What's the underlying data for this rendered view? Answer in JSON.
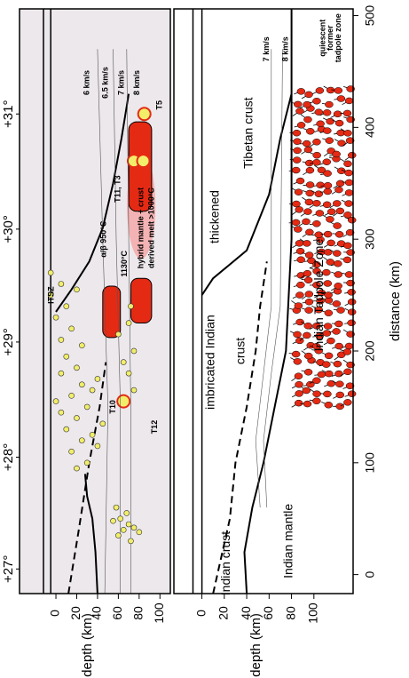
{
  "chart_data": [
    {
      "type": "line",
      "ylabel": "depth (km)",
      "xlim": [
        -17,
        506
      ],
      "ylim": [
        -35,
        110
      ],
      "yticks": [
        0,
        20,
        40,
        60,
        80,
        100
      ],
      "x2ticks": [
        {
          "value": 5,
          "label": "+27°"
        },
        {
          "value": 105,
          "label": "+28°"
        },
        {
          "value": 208,
          "label": "+29°"
        },
        {
          "value": 309,
          "label": "+30°"
        },
        {
          "value": 412,
          "label": "+31°"
        }
      ],
      "background": "#ece8ec",
      "series": [
        {
          "color": "#000000",
          "style": "solid",
          "width": 1.5,
          "x": [
            -17,
            506
          ],
          "values": [
            -12,
            -12
          ]
        },
        {
          "color": "#000000",
          "style": "solid",
          "width": 1.5,
          "x": [
            -17,
            506
          ],
          "values": [
            -5,
            -5
          ]
        },
        {
          "color": "#000000",
          "style": "dashed",
          "width": 2,
          "x": [
            -17,
            40,
            100,
            150,
            190
          ],
          "values": [
            12,
            22,
            32,
            42,
            48
          ]
        },
        {
          "color": "#000000",
          "style": "solid",
          "width": 2,
          "x": [
            -17,
            20,
            50,
            70,
            90
          ],
          "values": [
            40,
            38,
            35,
            30,
            28
          ]
        },
        {
          "color": "#000000",
          "style": "solid",
          "width": 2,
          "x": [
            235,
            255,
            280,
            310,
            350,
            390,
            430
          ],
          "values": [
            0,
            15,
            32,
            45,
            55,
            63,
            70
          ]
        },
        {
          "color": "#555555",
          "style": "solid",
          "width": 0.6,
          "x": [
            -17,
            150,
            300,
            470
          ],
          "values": [
            47,
            50,
            45,
            40
          ]
        },
        {
          "color": "#555555",
          "style": "solid",
          "width": 0.6,
          "x": [
            -17,
            150,
            300,
            470
          ],
          "values": [
            62,
            62,
            58,
            55
          ]
        },
        {
          "color": "#555555",
          "style": "solid",
          "width": 0.6,
          "x": [
            -17,
            150,
            300,
            470
          ],
          "values": [
            72,
            72,
            70,
            68
          ]
        }
      ],
      "scatter": {
        "color": "#f2ee6a",
        "x": [
          35,
          40,
          45,
          42,
          50,
          55,
          30,
          60,
          38,
          48,
          95,
          100,
          110,
          120,
          130,
          140,
          150,
          160,
          170,
          180,
          115,
          125,
          135,
          145,
          155,
          165,
          175,
          185,
          195,
          205,
          210,
          220,
          230,
          240,
          250,
          255,
          215,
          225,
          200,
          190,
          180,
          165,
          240,
          260,
          270
        ],
        "values": [
          60,
          65,
          70,
          75,
          62,
          68,
          72,
          58,
          80,
          55,
          20,
          30,
          15,
          25,
          10,
          20,
          30,
          15,
          25,
          5,
          40,
          35,
          45,
          5,
          0,
          35,
          40,
          20,
          10,
          25,
          5,
          15,
          0,
          10,
          -5,
          20,
          60,
          70,
          75,
          65,
          70,
          75,
          72,
          5,
          -5
        ]
      },
      "annotations": [
        "6 km/s",
        "6.5 km/s",
        "7 km/s",
        "8 km/s",
        "T5",
        "T11, T3",
        "hybrid mantle + crust",
        "derived melt >1000°C",
        "α/β 950°C",
        "1130°C",
        "ITSZ",
        "T10",
        "T12"
      ]
    },
    {
      "type": "line",
      "xlabel": "distance (km)",
      "ylabel": "depth (km)",
      "xlim": [
        -17,
        506
      ],
      "ylim": [
        -25,
        135
      ],
      "yticks": [
        0,
        20,
        40,
        60,
        80,
        100
      ],
      "xticks": [
        0,
        100,
        200,
        300,
        400,
        500
      ],
      "background": "#ffffff",
      "series": [
        {
          "color": "#000000",
          "style": "solid",
          "width": 1.5,
          "x": [
            -17,
            506
          ],
          "values": [
            -8,
            -8
          ]
        },
        {
          "color": "#000000",
          "style": "solid",
          "width": 1.5,
          "x": [
            -17,
            506
          ],
          "values": [
            0,
            0
          ]
        },
        {
          "color": "#000000",
          "style": "dashed",
          "width": 2,
          "x": [
            -17,
            50,
            100,
            150,
            200,
            240,
            280
          ],
          "values": [
            10,
            25,
            30,
            40,
            48,
            52,
            58
          ]
        },
        {
          "color": "#000000",
          "style": "solid",
          "width": 2,
          "x": [
            -17,
            20,
            60,
            100,
            150,
            200,
            300,
            420,
            506
          ],
          "values": [
            40,
            38,
            45,
            55,
            65,
            75,
            80,
            80,
            80
          ]
        },
        {
          "color": "#000000",
          "style": "solid",
          "width": 2,
          "x": [
            250,
            265,
            290,
            340,
            390,
            430
          ],
          "values": [
            0,
            10,
            40,
            60,
            70,
            80
          ]
        },
        {
          "color": "#555555",
          "style": "solid",
          "width": 0.6,
          "x": [
            60,
            120,
            180,
            240,
            470
          ],
          "values": [
            52,
            48,
            55,
            62,
            62
          ]
        },
        {
          "color": "#555555",
          "style": "solid",
          "width": 0.6,
          "x": [
            60,
            120,
            180,
            240,
            470
          ],
          "values": [
            58,
            55,
            62,
            70,
            72
          ]
        }
      ],
      "annotations": [
        "thickened",
        "Tibetan crust",
        "imbricated Indian",
        "crust",
        "Indian crust",
        "Indian mantle",
        "Indian Tadpole Zone",
        "7 km/s",
        "8 km/s",
        "quiescent",
        "former",
        "tadpole zone"
      ]
    }
  ]
}
